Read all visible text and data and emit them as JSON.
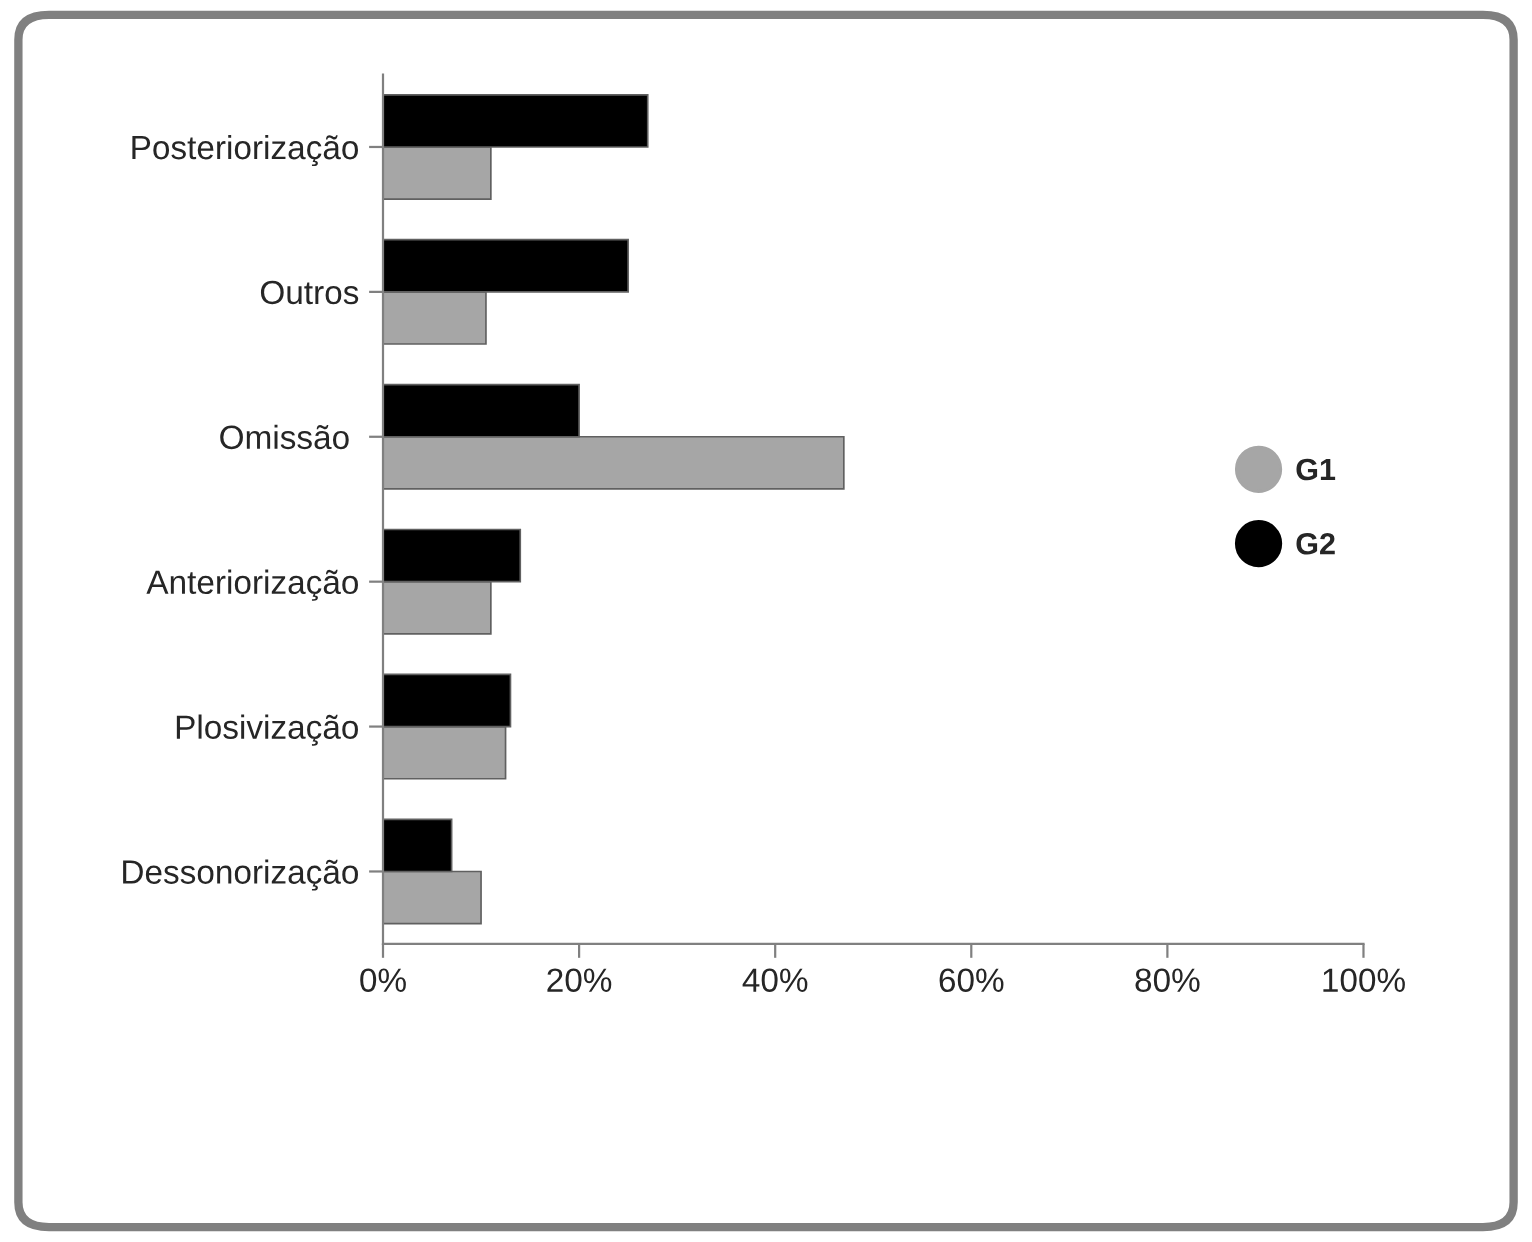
{
  "chart_data": {
    "type": "bar",
    "orientation": "horizontal",
    "categories": [
      "Posteriorização",
      "Outros",
      "Omissão ",
      "Anteriorização",
      "Plosivização",
      "Dessonorização"
    ],
    "series": [
      {
        "name": "G1",
        "color": "#a6a6a6",
        "values": [
          11,
          10.5,
          47,
          11,
          12.5,
          10
        ]
      },
      {
        "name": "G2",
        "color": "#000000",
        "values": [
          27,
          25,
          20,
          14,
          13,
          7
        ]
      }
    ],
    "xlim": [
      0,
      100
    ],
    "xticks": [
      {
        "value": 0,
        "label": "0%"
      },
      {
        "value": 20,
        "label": "20%"
      },
      {
        "value": 40,
        "label": "40%"
      },
      {
        "value": 60,
        "label": "60%"
      },
      {
        "value": 80,
        "label": "80%"
      },
      {
        "value": 100,
        "label": "100%"
      }
    ],
    "grid": false,
    "legend": "right"
  }
}
